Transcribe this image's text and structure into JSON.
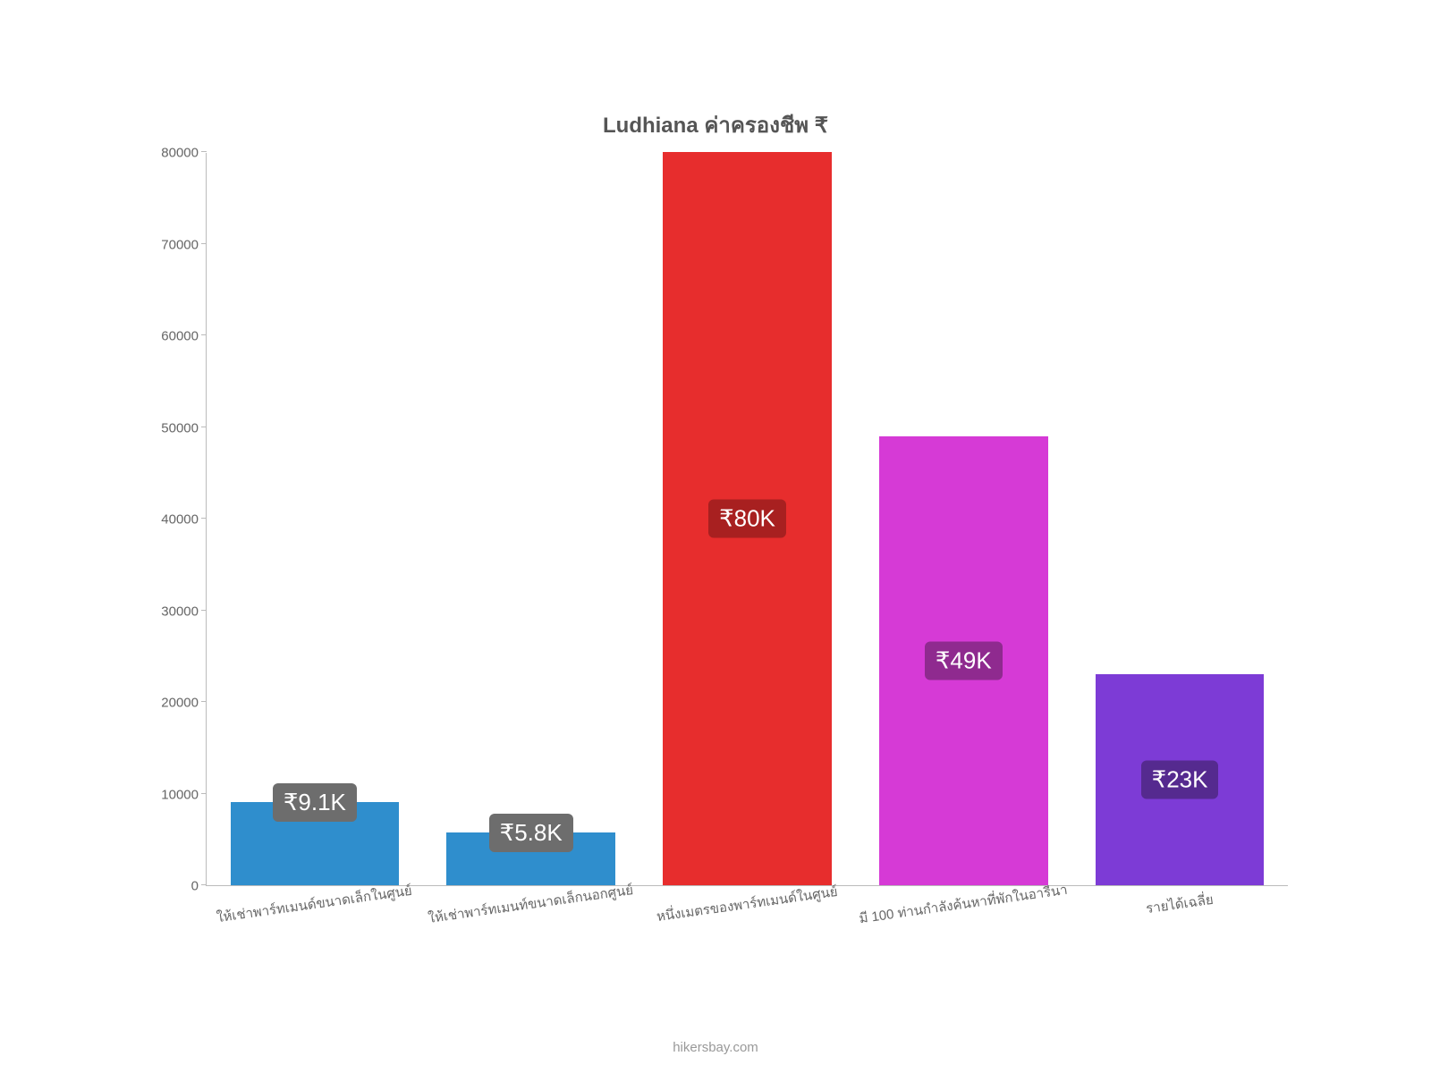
{
  "chart": {
    "type": "bar",
    "title": "Ludhiana ค่าครองชีพ ₹",
    "title_fontsize": 24,
    "title_color": "#555555",
    "background_color": "#ffffff",
    "axis_color": "#bbbbbb",
    "tick_label_color": "#666666",
    "tick_fontsize": 15,
    "ylim": [
      0,
      80000
    ],
    "ytick_step": 10000,
    "yticks": [
      0,
      10000,
      20000,
      30000,
      40000,
      50000,
      60000,
      70000,
      80000
    ],
    "categories": [
      "ให้เช่าพาร์ทเมนด์ขนาดเล็กในศูนย์",
      "ให้เช่าพาร์ทเมนท์ขนาดเล็กนอกศูนย์",
      "หนึ่งเมตรของพาร์ทเมนด์ในศูนย์",
      "มี 100 ท่านกำลังค้นหาที่พักในอารีนา",
      "รายได้เฉลี่ย"
    ],
    "values": [
      9100,
      5800,
      80000,
      49000,
      23000
    ],
    "bar_colors": [
      "#2f8ecd",
      "#2f8ecd",
      "#e72d2d",
      "#d63ad6",
      "#7d3bd6"
    ],
    "value_labels": [
      "₹9.1K",
      "₹5.8K",
      "₹80K",
      "₹49K",
      "₹23K"
    ],
    "label_bg_colors": [
      "#6d6d6d",
      "#6d6d6d",
      "#a82020",
      "#8f2a8f",
      "#552a8f"
    ],
    "label_fontsize": 26,
    "label_text_color": "#ffffff",
    "xlabel_fontsize": 15,
    "xlabel_rotation_deg": -8,
    "bar_width_ratio": 0.78,
    "attribution": "hikersbay.com",
    "attribution_color": "#999999",
    "attribution_fontsize": 15
  }
}
